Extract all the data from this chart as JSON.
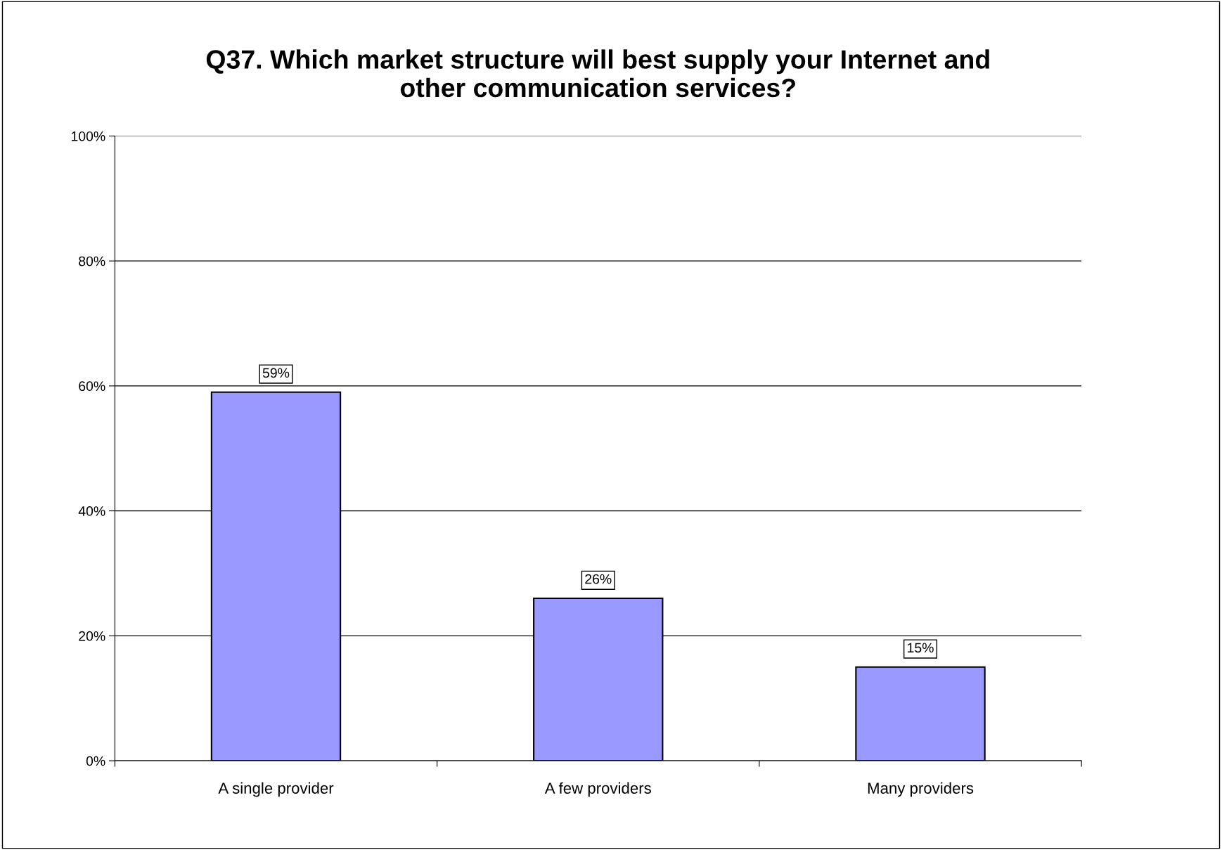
{
  "chart_data": {
    "type": "bar",
    "title": "Q37. Which market structure will best supply your Internet and\nother communication services?",
    "categories": [
      "A single provider",
      "A few providers",
      "Many providers"
    ],
    "values": [
      59,
      26,
      15
    ],
    "color": "#9999ff",
    "value_labels": [
      "59%",
      "26%",
      "15%"
    ],
    "ylim": [
      0,
      100
    ],
    "yticks": [
      {
        "value": 0,
        "label": "0%"
      },
      {
        "value": 20,
        "label": "20%"
      },
      {
        "value": 40,
        "label": "40%"
      },
      {
        "value": 60,
        "label": "60%"
      },
      {
        "value": 80,
        "label": "80%"
      },
      {
        "value": 100,
        "label": "100%"
      }
    ],
    "grid": "y",
    "legend": false
  }
}
